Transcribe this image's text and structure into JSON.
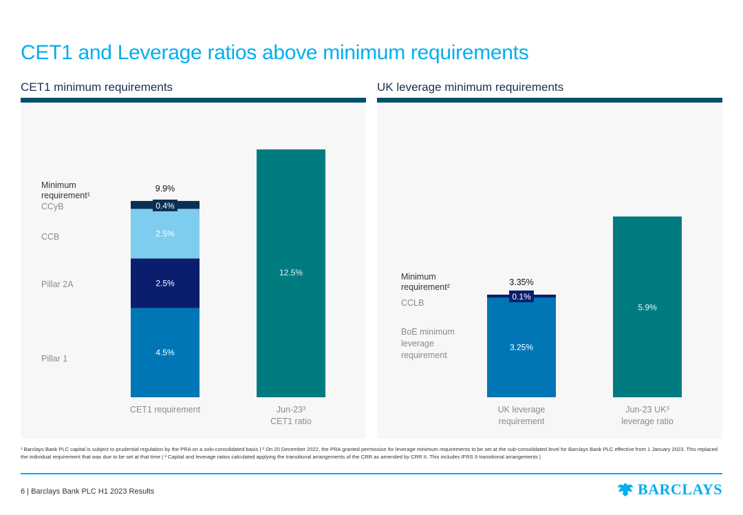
{
  "page": {
    "title": "CET1 and Leverage ratios above minimum requirements",
    "footnote": "¹ Barclays Bank PLC capital is subject to prudential regulation by the PRA on a solo-consolidated basis | ² On 20 December 2022, the PRA granted permission for leverage minimum requirements to be set at the sub-consolidated level for Barclays Bank PLC effective from 1 January 2023. This replaced the individual requirement that was due to be set at that time | ³ Capital and leverage ratios calculated applying the transitional arrangements of the CRR as amended by CRR II. This includes IFRS 9 transitional arrangements |",
    "footer": "6 | Barclays Bank PLC H1 2023 Results",
    "logo_text": "BARCLAYS",
    "logo_icon": "eagle-icon"
  },
  "colors": {
    "title": "#00aeef",
    "panel_rule": "#005070",
    "panel_bg": "#f7f7f7",
    "ccyb": "#0a2f52",
    "ccb": "#7fcdee",
    "pillar2a": "#0b1e6e",
    "pillar1": "#0076b6",
    "actual": "#007b80",
    "leverage_req": "#0076b6",
    "cclb": "#0b1e6e"
  },
  "chart_data": [
    {
      "type": "bar",
      "stacked": true,
      "title": "CET1 minimum requirements",
      "categories": [
        "CET1 requirement",
        "Jun-23³\nCET1 ratio"
      ],
      "series": [
        {
          "name": "Pillar 1",
          "values": [
            4.5,
            null
          ],
          "labels": [
            "4.5%",
            ""
          ]
        },
        {
          "name": "Pillar 2A",
          "values": [
            2.5,
            null
          ],
          "labels": [
            "2.5%",
            ""
          ]
        },
        {
          "name": "CCB",
          "values": [
            2.5,
            null
          ],
          "labels": [
            "2.5%",
            ""
          ]
        },
        {
          "name": "CCyB",
          "values": [
            0.4,
            null
          ],
          "labels": [
            "0.4%",
            ""
          ]
        },
        {
          "name": "Jun-23 CET1 ratio",
          "values": [
            null,
            12.5
          ],
          "labels": [
            "",
            "12.5%"
          ]
        }
      ],
      "total_label": "9.9%",
      "legend_header": "Minimum\nrequirement¹",
      "legend": [
        "CCyB",
        "CCB",
        "Pillar 2A",
        "Pillar 1"
      ],
      "ylim": [
        0,
        12.5
      ],
      "grid": false
    },
    {
      "type": "bar",
      "stacked": true,
      "title": "UK leverage minimum requirements",
      "categories": [
        "UK leverage\nrequirement",
        "Jun-23 UK³\nleverage ratio"
      ],
      "series": [
        {
          "name": "BoE minimum leverage requirement",
          "values": [
            3.25,
            null
          ],
          "labels": [
            "3.25%",
            ""
          ]
        },
        {
          "name": "CCLB",
          "values": [
            0.1,
            null
          ],
          "labels": [
            "0.1%",
            ""
          ]
        },
        {
          "name": "Jun-23 UK leverage ratio",
          "values": [
            null,
            5.9
          ],
          "labels": [
            "",
            "5.9%"
          ]
        }
      ],
      "total_label": "3.35%",
      "legend_header": "Minimum\nrequirement²",
      "legend": [
        "CCLB",
        "BoE minimum\nleverage\nrequirement"
      ],
      "ylim": [
        0,
        5.9
      ],
      "grid": false
    }
  ]
}
